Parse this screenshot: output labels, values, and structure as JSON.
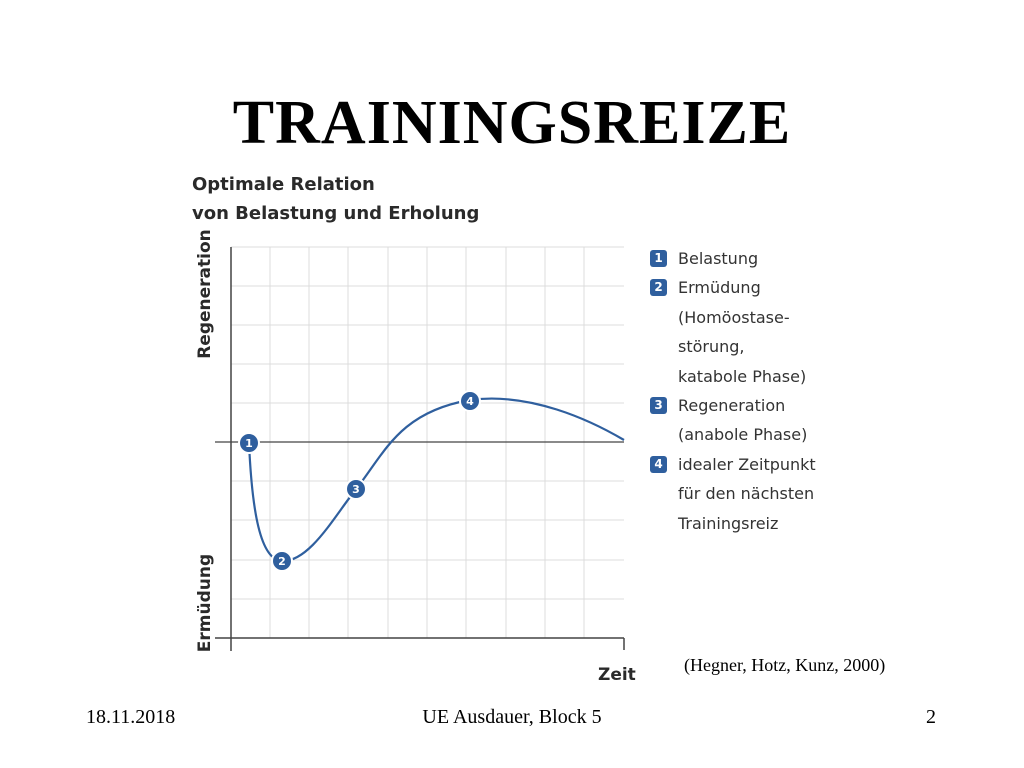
{
  "slide": {
    "title": "TRAININGSREIZE",
    "source": "(Hegner, Hotz, Kunz, 2000)",
    "footer": {
      "date": "18.11.2018",
      "center": "UE Ausdauer, Block 5",
      "page": "2"
    }
  },
  "diagram": {
    "title_lines": [
      "Optimale Relation",
      "von Belastung und Erholung"
    ],
    "y_label_top": "Regeneration",
    "y_label_bottom": "Ermüdung",
    "x_label": "Zeit",
    "markers": [
      "1",
      "2",
      "3",
      "4"
    ],
    "legend": [
      {
        "num": "1",
        "lines": [
          "Belastung"
        ]
      },
      {
        "num": "2",
        "lines": [
          "Ermüdung",
          "(Homöostase-",
          "störung,",
          "katabole Phase)"
        ]
      },
      {
        "num": "3",
        "lines": [
          "Regeneration",
          "(anabole Phase)"
        ]
      },
      {
        "num": "4",
        "lines": [
          "idealer Zeitpunkt",
          "für den nächsten",
          "Trainingsreiz"
        ]
      }
    ],
    "colors": {
      "curve": "#2f5f9e",
      "marker_fill": "#2f5f9e",
      "grid": "#dcdcdc",
      "axis": "#444444"
    }
  }
}
